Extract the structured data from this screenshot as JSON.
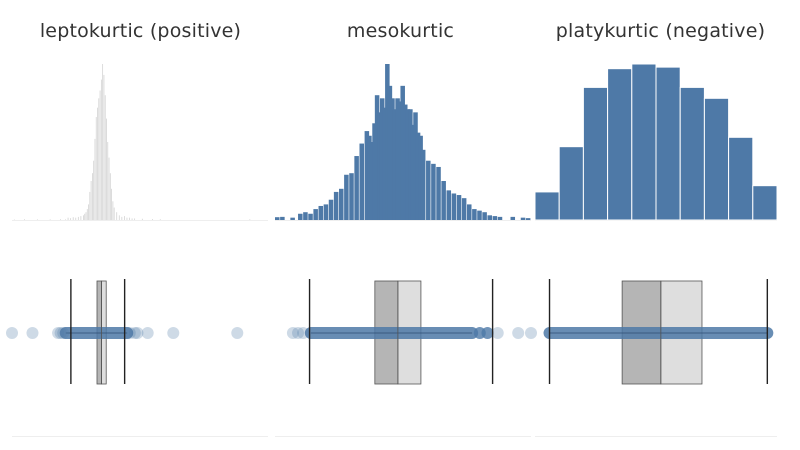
{
  "colors": {
    "lepto_hist": "#d3d3d3",
    "lepto_dot": "#b7c8dc",
    "dot_core": "#4e79a7",
    "bar": "#4e79a7",
    "bar_edge": "#ffffff",
    "whisker": "#222222",
    "box_lower": "#b5b5b5",
    "box_upper": "#dedede",
    "median_line": "#555555",
    "baseline": "#eeeeee"
  },
  "chart_data": [
    {
      "type": "bar",
      "title": "leptokurtic (positive)",
      "x_range": [
        0,
        100
      ],
      "ymax": 100,
      "histogram": [
        {
          "x": 1,
          "h": 0.3
        },
        {
          "x": 5,
          "h": 0.5
        },
        {
          "x": 10,
          "h": 0.4
        },
        {
          "x": 15,
          "h": 0.4
        },
        {
          "x": 19,
          "h": 0.5
        },
        {
          "x": 21,
          "h": 0.4
        },
        {
          "x": 22,
          "h": 1.5
        },
        {
          "x": 23,
          "h": 1.2
        },
        {
          "x": 24,
          "h": 1.8
        },
        {
          "x": 25,
          "h": 1.5
        },
        {
          "x": 26,
          "h": 2.0
        },
        {
          "x": 27,
          "h": 2.5
        },
        {
          "x": 28,
          "h": 3.0
        },
        {
          "x": 28.5,
          "h": 4.0
        },
        {
          "x": 29,
          "h": 5.0
        },
        {
          "x": 29.5,
          "h": 7.0
        },
        {
          "x": 30,
          "h": 10
        },
        {
          "x": 30.5,
          "h": 18
        },
        {
          "x": 31,
          "h": 25
        },
        {
          "x": 31.5,
          "h": 30
        },
        {
          "x": 32,
          "h": 38
        },
        {
          "x": 32.5,
          "h": 52
        },
        {
          "x": 33,
          "h": 66
        },
        {
          "x": 33.5,
          "h": 72
        },
        {
          "x": 34,
          "h": 78
        },
        {
          "x": 34.5,
          "h": 83
        },
        {
          "x": 35,
          "h": 90
        },
        {
          "x": 35.5,
          "h": 100
        },
        {
          "x": 36,
          "h": 93
        },
        {
          "x": 36.5,
          "h": 80
        },
        {
          "x": 37,
          "h": 65
        },
        {
          "x": 37.5,
          "h": 50
        },
        {
          "x": 38,
          "h": 40
        },
        {
          "x": 38.5,
          "h": 30
        },
        {
          "x": 39,
          "h": 20
        },
        {
          "x": 39.5,
          "h": 12
        },
        {
          "x": 40,
          "h": 8
        },
        {
          "x": 41,
          "h": 5
        },
        {
          "x": 42,
          "h": 3
        },
        {
          "x": 43,
          "h": 2
        },
        {
          "x": 44,
          "h": 2.5
        },
        {
          "x": 45,
          "h": 1.5
        },
        {
          "x": 46,
          "h": 1.5
        },
        {
          "x": 47,
          "h": 1
        },
        {
          "x": 48,
          "h": 1
        },
        {
          "x": 51,
          "h": 0.8
        },
        {
          "x": 55,
          "h": 0.6
        },
        {
          "x": 58,
          "h": 0.5
        },
        {
          "x": 93,
          "h": 0.5
        }
      ],
      "strip": {
        "outliers": [
          0,
          8,
          18,
          19,
          20,
          46,
          48,
          49,
          53,
          63,
          88
        ],
        "core_range": [
          21,
          45
        ],
        "whiskers": [
          23,
          44
        ],
        "q1": 33.2,
        "median": 35.0,
        "q3": 36.8
      }
    },
    {
      "type": "bar",
      "title": "mesokurtic",
      "x_range": [
        0,
        100
      ],
      "ymax": 100,
      "histogram": [
        {
          "x": 1,
          "h": 1.8
        },
        {
          "x": 3,
          "h": 2
        },
        {
          "x": 7,
          "h": 1.5
        },
        {
          "x": 10,
          "h": 4
        },
        {
          "x": 12,
          "h": 5
        },
        {
          "x": 14,
          "h": 4
        },
        {
          "x": 16,
          "h": 7
        },
        {
          "x": 18,
          "h": 9
        },
        {
          "x": 20,
          "h": 10
        },
        {
          "x": 22,
          "h": 13
        },
        {
          "x": 24,
          "h": 18
        },
        {
          "x": 26,
          "h": 20
        },
        {
          "x": 28,
          "h": 29
        },
        {
          "x": 30,
          "h": 30
        },
        {
          "x": 32,
          "h": 41
        },
        {
          "x": 34,
          "h": 49
        },
        {
          "x": 36,
          "h": 57
        },
        {
          "x": 37,
          "h": 54
        },
        {
          "x": 38,
          "h": 50
        },
        {
          "x": 39,
          "h": 62
        },
        {
          "x": 40,
          "h": 80
        },
        {
          "x": 41,
          "h": 69
        },
        {
          "x": 42,
          "h": 78
        },
        {
          "x": 43,
          "h": 72
        },
        {
          "x": 44,
          "h": 100
        },
        {
          "x": 45,
          "h": 86
        },
        {
          "x": 46,
          "h": 78
        },
        {
          "x": 47,
          "h": 71
        },
        {
          "x": 48,
          "h": 78
        },
        {
          "x": 49,
          "h": 76
        },
        {
          "x": 50,
          "h": 86
        },
        {
          "x": 51,
          "h": 74
        },
        {
          "x": 52,
          "h": 71
        },
        {
          "x": 53,
          "h": 71
        },
        {
          "x": 54,
          "h": 61
        },
        {
          "x": 55,
          "h": 69
        },
        {
          "x": 56,
          "h": 56
        },
        {
          "x": 57,
          "h": 54
        },
        {
          "x": 58,
          "h": 45
        },
        {
          "x": 60,
          "h": 38
        },
        {
          "x": 62,
          "h": 36
        },
        {
          "x": 64,
          "h": 34
        },
        {
          "x": 66,
          "h": 25
        },
        {
          "x": 68,
          "h": 19
        },
        {
          "x": 70,
          "h": 17
        },
        {
          "x": 72,
          "h": 16
        },
        {
          "x": 74,
          "h": 14
        },
        {
          "x": 76,
          "h": 10
        },
        {
          "x": 78,
          "h": 7
        },
        {
          "x": 80,
          "h": 6
        },
        {
          "x": 82,
          "h": 5
        },
        {
          "x": 84,
          "h": 3
        },
        {
          "x": 86,
          "h": 2.5
        },
        {
          "x": 88,
          "h": 2
        },
        {
          "x": 93,
          "h": 2
        },
        {
          "x": 97,
          "h": 1.5
        },
        {
          "x": 99,
          "h": 1.2
        }
      ],
      "strip": {
        "outliers": [
          7,
          9,
          11,
          80,
          83,
          87,
          95,
          100
        ],
        "core_range": [
          14,
          77
        ],
        "whiskers": [
          13.5,
          85
        ],
        "q1": 39,
        "median": 48,
        "q3": 57
      }
    },
    {
      "type": "bar",
      "title": "platykurtic (negative)",
      "x_range": [
        0,
        100
      ],
      "ymax": 100,
      "histogram": [
        {
          "x": 5,
          "h": 18
        },
        {
          "x": 15,
          "h": 47
        },
        {
          "x": 25,
          "h": 85
        },
        {
          "x": 35,
          "h": 97
        },
        {
          "x": 45,
          "h": 100
        },
        {
          "x": 55,
          "h": 98
        },
        {
          "x": 65,
          "h": 85
        },
        {
          "x": 75,
          "h": 78
        },
        {
          "x": 85,
          "h": 53
        },
        {
          "x": 95,
          "h": 22
        }
      ],
      "strip": {
        "outliers": [],
        "core_range": [
          6,
          96
        ],
        "whiskers": [
          6,
          96
        ],
        "q1": 36,
        "median": 52,
        "q3": 69
      }
    }
  ]
}
